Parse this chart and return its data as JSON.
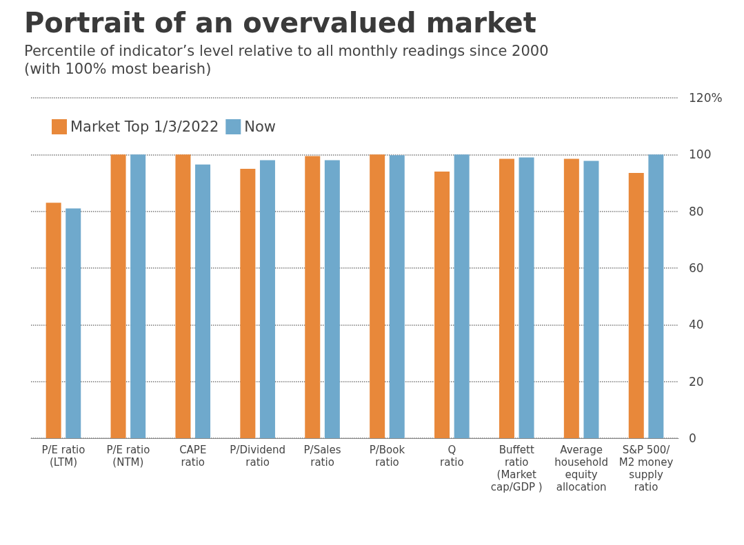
{
  "chart_data": {
    "type": "bar",
    "title": "Portrait of an overvalued market",
    "subtitle": "Percentile of indicator’s level relative to all monthly readings since 2000\n(with 100% most bearish)",
    "categories": [
      "P/E ratio\n(LTM)",
      "P/E ratio\n(NTM)",
      "CAPE\nratio",
      "P/Dividend\nratio",
      "P/Sales\nratio",
      "P/Book\nratio",
      "Q\nratio",
      "Buffett\nratio\n(Market\ncap/GDP )",
      "Average\nhousehold\nequity\nallocation",
      "S&P 500/\nM2 money\nsupply\nratio"
    ],
    "series": [
      {
        "name": "Market Top 1/3/2022",
        "color": "#e8883a",
        "values": [
          83,
          100,
          100,
          95,
          99.5,
          100,
          94,
          98.5,
          98.5,
          93.5
        ]
      },
      {
        "name": "Now",
        "color": "#6fa9cc",
        "values": [
          81,
          100,
          96.5,
          98,
          98,
          99.8,
          100,
          99,
          97.8,
          100
        ]
      }
    ],
    "ylim": [
      0,
      120
    ],
    "yticks": [
      0,
      20,
      40,
      60,
      80,
      100,
      {
        "value": 120,
        "label": "120%"
      }
    ],
    "grid": "y",
    "legend": "top left"
  }
}
